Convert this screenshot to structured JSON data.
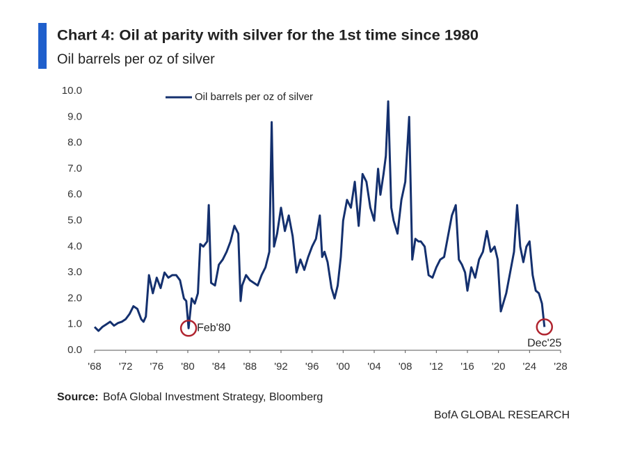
{
  "chart_data": {
    "type": "line",
    "title": "Chart 4: Oil at parity with silver for the 1st time since 1980",
    "subtitle": "Oil barrels per oz of silver",
    "source": {
      "label": "Source:",
      "text": "BofA Global Investment Strategy, Bloomberg"
    },
    "brand": "BofA GLOBAL RESEARCH",
    "x": [
      1968,
      1968.5,
      1969,
      1969.5,
      1970,
      1970.5,
      1971,
      1971.5,
      1972,
      1972.5,
      1973,
      1973.5,
      1974,
      1974.3,
      1974.6,
      1975,
      1975.5,
      1976,
      1976.5,
      1977,
      1977.5,
      1978,
      1978.5,
      1979,
      1979.5,
      1979.8,
      1980.1,
      1980.5,
      1980.9,
      1981.3,
      1981.6,
      1982,
      1982.5,
      1982.7,
      1983,
      1983.5,
      1984,
      1984.5,
      1985,
      1985.5,
      1986,
      1986.5,
      1986.8,
      1987,
      1987.5,
      1988,
      1988.5,
      1989,
      1989.5,
      1990,
      1990.5,
      1990.8,
      1991.1,
      1991.5,
      1992,
      1992.5,
      1993,
      1993.5,
      1994,
      1994.5,
      1995,
      1995.5,
      1996,
      1996.5,
      1997,
      1997.3,
      1997.6,
      1998,
      1998.5,
      1998.9,
      1999.3,
      1999.7,
      2000,
      2000.5,
      2001,
      2001.5,
      2002,
      2002.5,
      2003,
      2003.5,
      2004,
      2004.5,
      2004.8,
      2005.2,
      2005.5,
      2005.8,
      2006.2,
      2006.5,
      2007,
      2007.5,
      2008,
      2008.5,
      2008.9,
      2009.3,
      2009.7,
      2010,
      2010.5,
      2011,
      2011.5,
      2012,
      2012.5,
      2013,
      2013.5,
      2014,
      2014.5,
      2014.9,
      2015.3,
      2015.7,
      2016,
      2016.5,
      2017,
      2017.5,
      2018,
      2018.5,
      2019,
      2019.5,
      2019.9,
      2020.3,
      2020.7,
      2021,
      2021.5,
      2022,
      2022.4,
      2022.8,
      2023.2,
      2023.6,
      2024,
      2024.4,
      2024.8,
      2025.2,
      2025.6,
      2025.92
    ],
    "series": [
      {
        "name": "Oil barrels per oz of silver",
        "color": "#14306e",
        "values": [
          0.9,
          0.75,
          0.9,
          1.0,
          1.1,
          0.95,
          1.05,
          1.1,
          1.2,
          1.4,
          1.7,
          1.6,
          1.2,
          1.1,
          1.3,
          2.9,
          2.2,
          2.8,
          2.4,
          3.0,
          2.8,
          2.9,
          2.9,
          2.7,
          2.0,
          1.9,
          0.85,
          2.0,
          1.8,
          2.2,
          4.1,
          4.0,
          4.2,
          5.6,
          2.6,
          2.5,
          3.3,
          3.5,
          3.8,
          4.2,
          4.8,
          4.5,
          1.9,
          2.5,
          2.9,
          2.7,
          2.6,
          2.5,
          2.9,
          3.2,
          3.8,
          8.8,
          4.0,
          4.5,
          5.5,
          4.6,
          5.2,
          4.4,
          3.0,
          3.5,
          3.1,
          3.6,
          4.0,
          4.3,
          5.2,
          3.6,
          3.8,
          3.4,
          2.4,
          2.0,
          2.5,
          3.6,
          5.0,
          5.8,
          5.5,
          6.5,
          4.8,
          6.8,
          6.5,
          5.5,
          5.0,
          7.0,
          6.0,
          6.8,
          7.5,
          9.6,
          5.5,
          5.0,
          4.5,
          5.8,
          6.5,
          9.0,
          3.5,
          4.3,
          4.2,
          4.2,
          4.0,
          2.9,
          2.8,
          3.2,
          3.5,
          3.6,
          4.4,
          5.2,
          5.6,
          3.5,
          3.3,
          3.0,
          2.3,
          3.2,
          2.8,
          3.5,
          3.8,
          4.6,
          3.8,
          4.0,
          3.5,
          1.5,
          1.9,
          2.2,
          3.0,
          3.8,
          5.6,
          4.0,
          3.4,
          4.0,
          4.2,
          2.9,
          2.3,
          2.2,
          1.8,
          0.9
        ]
      }
    ],
    "annotations": [
      {
        "text": "Feb'80",
        "x": 1980.1,
        "y": 0.85,
        "color": "#b0242f"
      },
      {
        "text": "Dec'25",
        "x": 2025.92,
        "y": 0.9,
        "color": "#b0242f"
      }
    ],
    "xlim": [
      1968,
      2028
    ],
    "xticks": [
      {
        "value": 1968,
        "label": "'68"
      },
      {
        "value": 1972,
        "label": "'72"
      },
      {
        "value": 1976,
        "label": "'76"
      },
      {
        "value": 1980,
        "label": "'80"
      },
      {
        "value": 1984,
        "label": "'84"
      },
      {
        "value": 1988,
        "label": "'88"
      },
      {
        "value": 1992,
        "label": "'92"
      },
      {
        "value": 1996,
        "label": "'96"
      },
      {
        "value": 2000,
        "label": "'00"
      },
      {
        "value": 2004,
        "label": "'04"
      },
      {
        "value": 2008,
        "label": "'08"
      },
      {
        "value": 2012,
        "label": "'12"
      },
      {
        "value": 2016,
        "label": "'16"
      },
      {
        "value": 2020,
        "label": "'20"
      },
      {
        "value": 2024,
        "label": "'24"
      },
      {
        "value": 2028,
        "label": "'28"
      }
    ],
    "ylim": [
      0,
      10
    ],
    "yticks": [
      {
        "value": 0,
        "label": "0.0"
      },
      {
        "value": 1,
        "label": "1.0"
      },
      {
        "value": 2,
        "label": "2.0"
      },
      {
        "value": 3,
        "label": "3.0"
      },
      {
        "value": 4,
        "label": "4.0"
      },
      {
        "value": 5,
        "label": "5.0"
      },
      {
        "value": 6,
        "label": "6.0"
      },
      {
        "value": 7,
        "label": "7.0"
      },
      {
        "value": 8,
        "label": "8.0"
      },
      {
        "value": 9,
        "label": "9.0"
      },
      {
        "value": 10,
        "label": "10.0"
      }
    ],
    "grid": false
  }
}
